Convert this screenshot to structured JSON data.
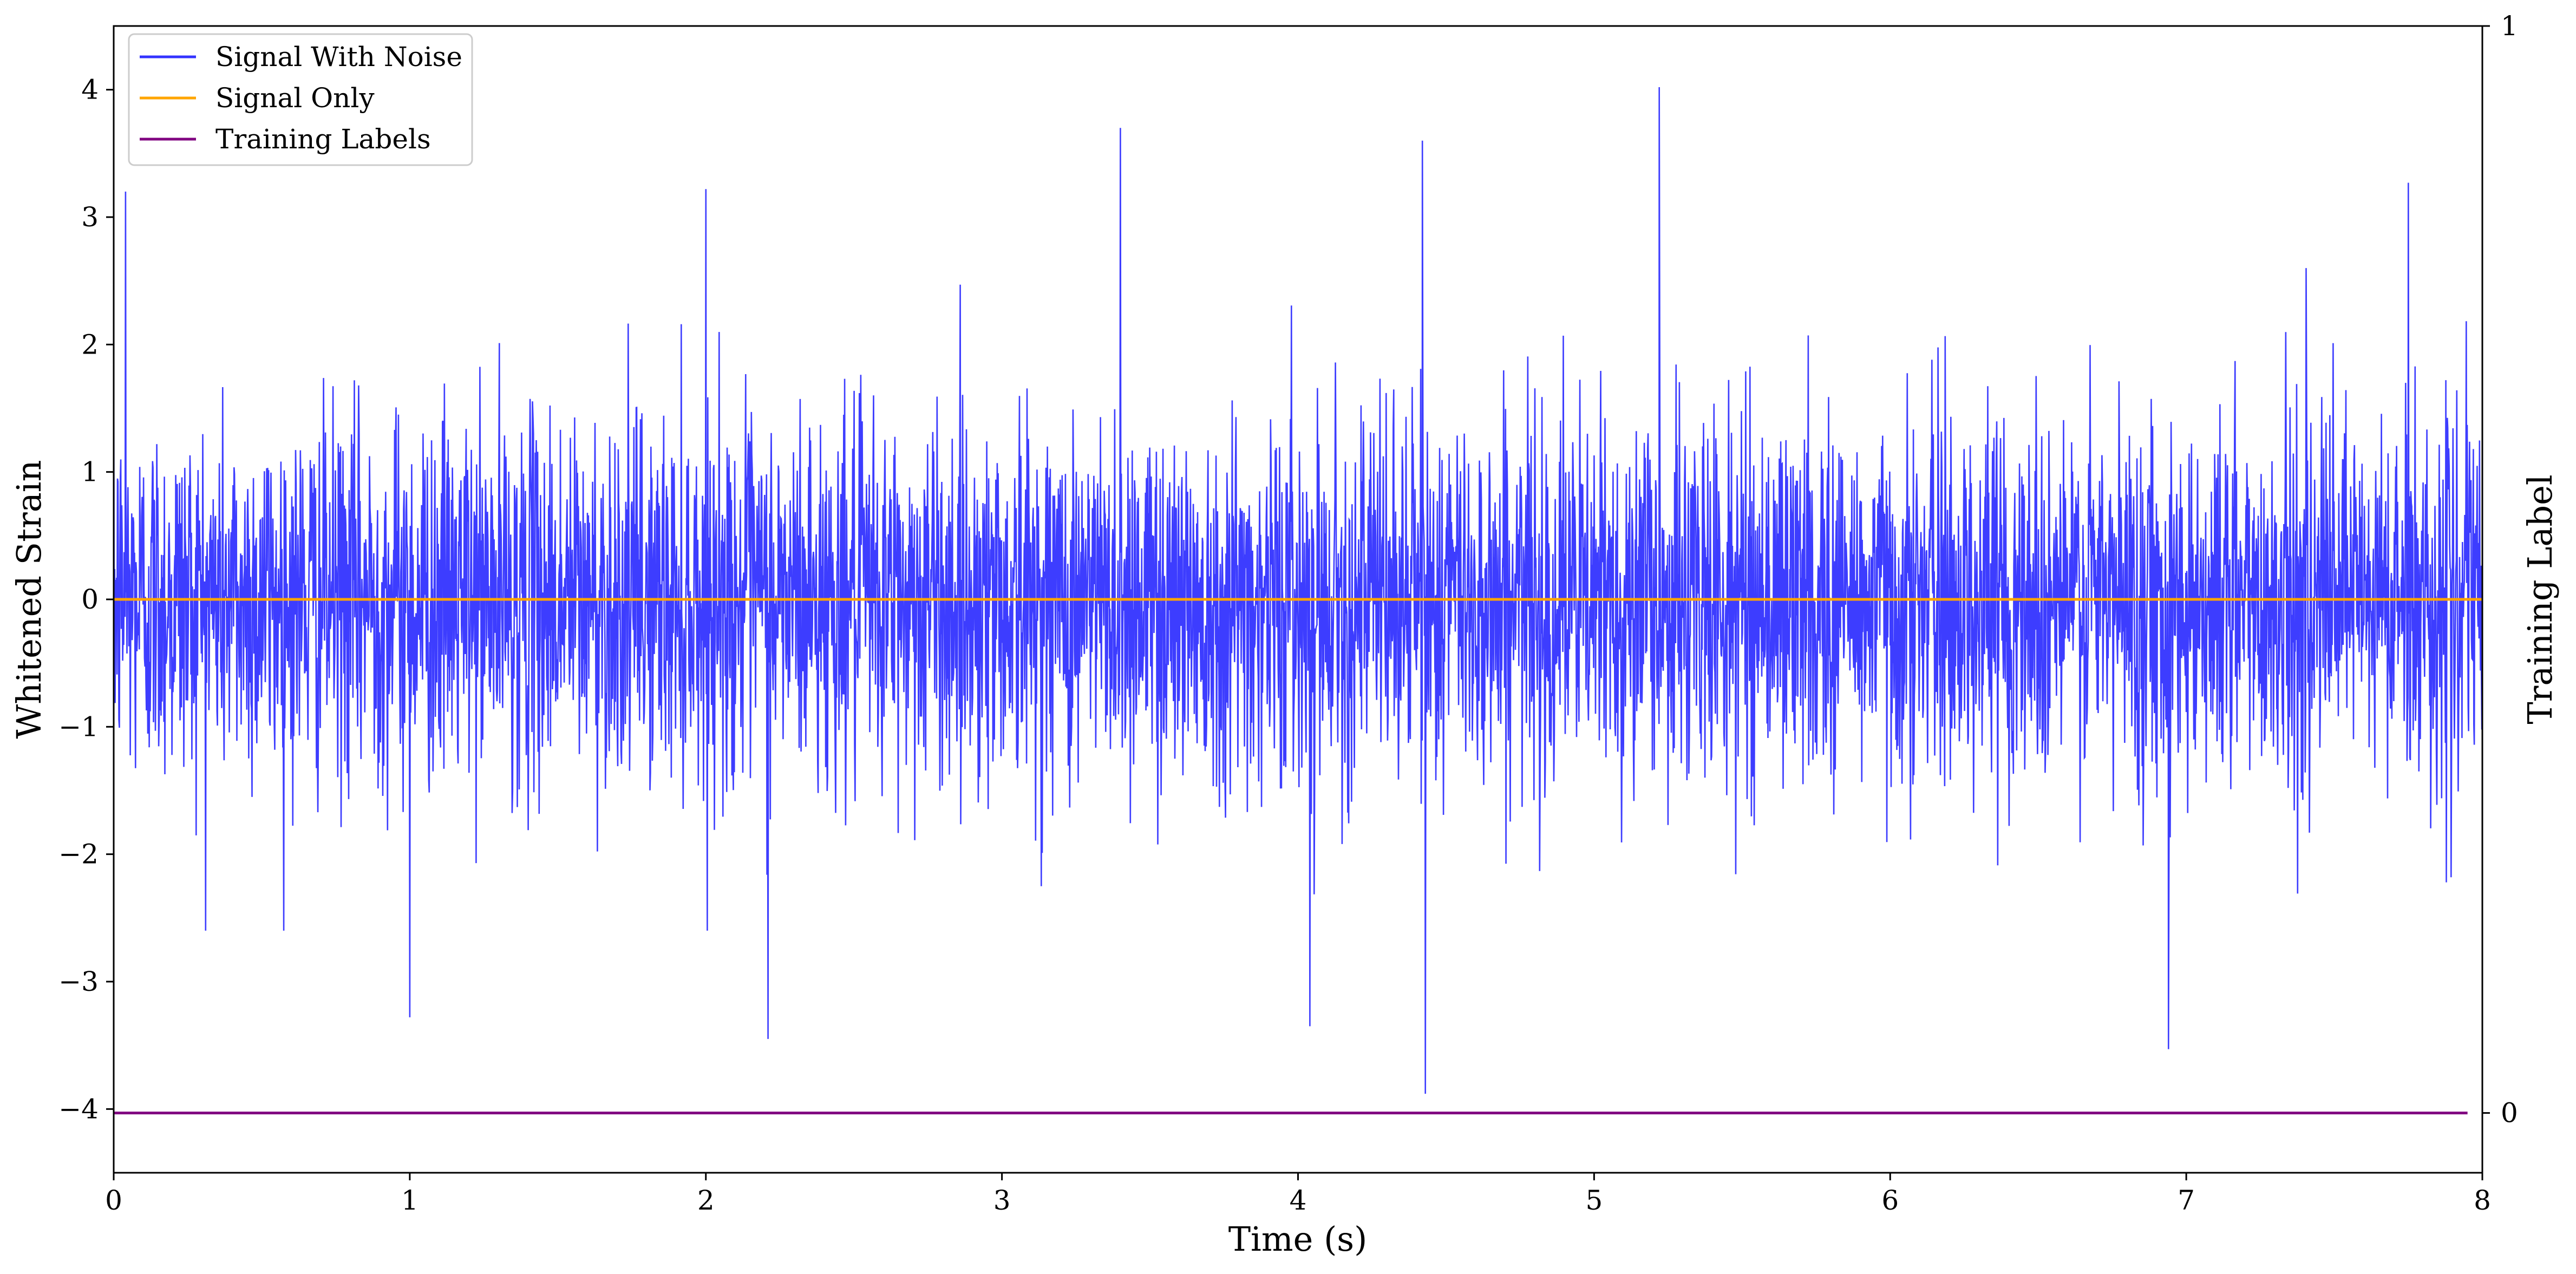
{
  "chart_data": {
    "type": "line",
    "xlabel": "Time (s)",
    "ylabel": "Whitened Strain",
    "ylabel_right": "Training Label",
    "xlim": [
      0,
      8
    ],
    "ylim": [
      -4.5,
      4.5
    ],
    "ylim_right": [
      -0.055,
      1.0
    ],
    "xticks": [
      0,
      1,
      2,
      3,
      4,
      5,
      6,
      7,
      8
    ],
    "xtick_labels": [
      "0",
      "1",
      "2",
      "3",
      "4",
      "5",
      "6",
      "7",
      "8"
    ],
    "yticks": [
      -4,
      -3,
      -2,
      -1,
      0,
      1,
      2,
      3,
      4
    ],
    "ytick_labels": [
      "−4",
      "−3",
      "−2",
      "−1",
      "0",
      "1",
      "2",
      "3",
      "4"
    ],
    "yticks_right": [
      0,
      1
    ],
    "ytick_labels_right": [
      "0",
      "1"
    ],
    "grid": false,
    "legend_position": "top-left",
    "series": [
      {
        "name": "Signal With Noise",
        "color": "#3333ff",
        "style": "dense noise, roughly +/-1.5 typical amplitude",
        "x_range": [
          0,
          8
        ],
        "notable_peaks": [
          {
            "x": 0.04,
            "y": 3.2
          },
          {
            "x": 1.0,
            "y": -3.28
          },
          {
            "x": 2.0,
            "y": 3.22
          },
          {
            "x": 2.21,
            "y": -3.45
          },
          {
            "x": 3.4,
            "y": 3.7
          },
          {
            "x": 4.04,
            "y": -3.35
          },
          {
            "x": 4.42,
            "y": 3.6
          },
          {
            "x": 4.43,
            "y": -3.88
          },
          {
            "x": 5.22,
            "y": 4.02
          },
          {
            "x": 6.94,
            "y": -3.53
          },
          {
            "x": 7.75,
            "y": 3.27
          }
        ]
      },
      {
        "name": "Signal Only",
        "color": "#ffa500",
        "x": [
          0,
          8
        ],
        "y": [
          0,
          0
        ]
      },
      {
        "name": "Training Labels",
        "color": "#800080",
        "axis": "right",
        "x": [
          0,
          7.95
        ],
        "y": [
          0,
          0
        ]
      }
    ]
  }
}
